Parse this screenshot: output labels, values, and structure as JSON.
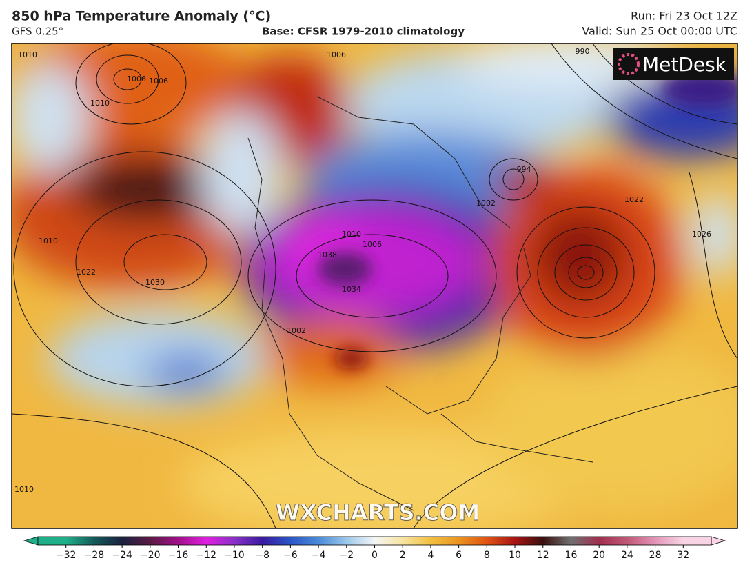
{
  "header": {
    "title": "850 hPa Temperature Anomaly (°C)",
    "model": "GFS 0.25°",
    "base": "Base: CFSR 1979-2010 climatology",
    "run": "Run: Fri 23 Oct 12Z",
    "valid": "Valid: Sun 25 Oct 00:00 UTC"
  },
  "map": {
    "logo": "MetDesk",
    "watermark": "WXCHARTS.COM",
    "contour_labels": [
      "1010",
      "1006",
      "1010",
      "1006",
      "1010",
      "1022",
      "1030",
      "1026",
      "1022",
      "994",
      "1002",
      "990",
      "1006",
      "1010",
      "1006",
      "1038",
      "1034",
      "1002",
      "1010"
    ]
  },
  "colorbar": {
    "ticks": [
      -32,
      -28,
      -24,
      -20,
      -16,
      -12,
      -10,
      -8,
      -6,
      -4,
      -2,
      0,
      2,
      4,
      6,
      8,
      10,
      12,
      16,
      20,
      24,
      28,
      32
    ],
    "tick_labels": [
      "−32",
      "−28",
      "−24",
      "−20",
      "−16",
      "−12",
      "−10",
      "−8",
      "−6",
      "−4",
      "−2",
      "0",
      "2",
      "4",
      "6",
      "8",
      "10",
      "12",
      "16",
      "20",
      "24",
      "28",
      "32"
    ],
    "colors": [
      "#1fb08a",
      "#145a5a",
      "#1a2240",
      "#5a1a44",
      "#a0108a",
      "#e020e0",
      "#8a30c8",
      "#3a1aa0",
      "#2a56c8",
      "#4a8ad8",
      "#9cc8ea",
      "#f4f6f8",
      "#f8e4a0",
      "#f2c040",
      "#ea9420",
      "#e05414",
      "#a81414",
      "#3a1010",
      "#707070",
      "#a03050",
      "#c05878",
      "#e494b8",
      "#f8d4e4"
    ]
  }
}
